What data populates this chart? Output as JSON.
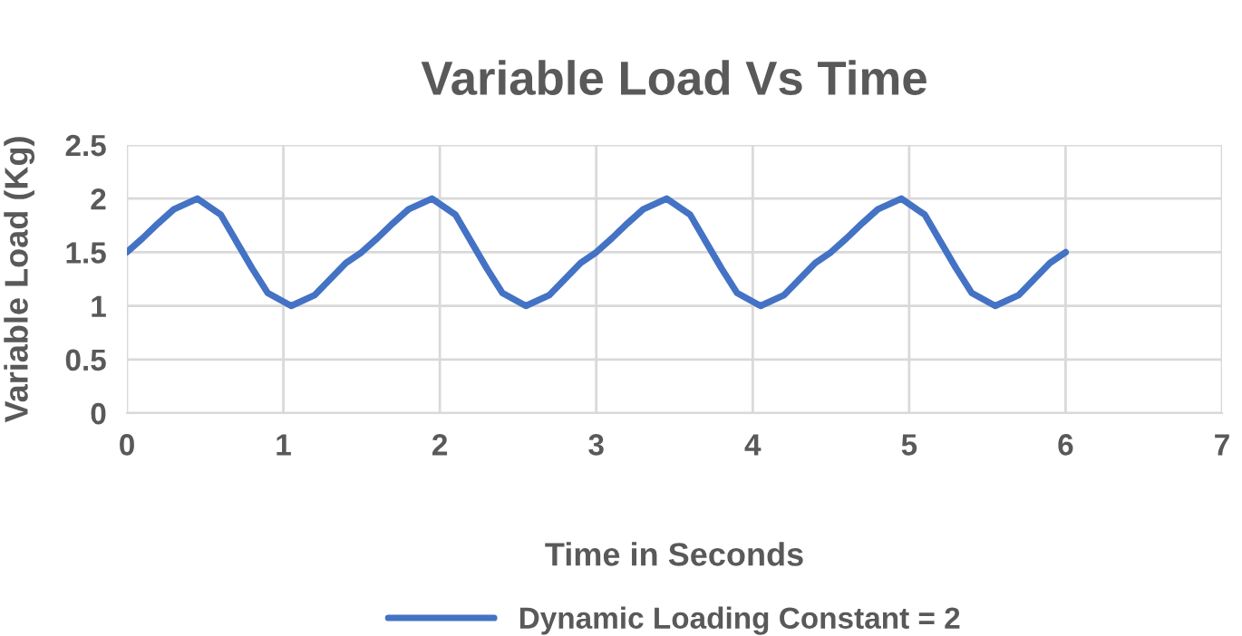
{
  "chart_data": {
    "type": "line",
    "title": "Variable Load Vs Time",
    "xlabel": "Time in Seconds",
    "ylabel": "Variable Load (Kg)",
    "series": [
      {
        "name": "Dynamic Loading Constant = 2",
        "color": "#4472c4",
        "x": [
          0,
          0.1,
          0.2,
          0.3,
          0.45,
          0.6,
          0.7,
          0.8,
          0.9,
          1.05,
          1.2,
          1.3,
          1.4,
          1.5,
          1.6,
          1.7,
          1.8,
          1.95,
          2.1,
          2.2,
          2.3,
          2.4,
          2.55,
          2.7,
          2.8,
          2.9,
          3,
          3.1,
          3.2,
          3.3,
          3.45,
          3.6,
          3.7,
          3.8,
          3.9,
          4.05,
          4.2,
          4.3,
          4.4,
          4.5,
          4.6,
          4.7,
          4.8,
          4.95,
          5.1,
          5.2,
          5.3,
          5.4,
          5.55,
          5.7,
          5.8,
          5.9,
          6
        ],
        "values": [
          1.5,
          1.63,
          1.77,
          1.9,
          2,
          1.85,
          1.6,
          1.35,
          1.12,
          1,
          1.1,
          1.25,
          1.4,
          1.5,
          1.63,
          1.77,
          1.9,
          2,
          1.85,
          1.6,
          1.35,
          1.12,
          1,
          1.1,
          1.25,
          1.4,
          1.5,
          1.63,
          1.77,
          1.9,
          2,
          1.85,
          1.6,
          1.35,
          1.12,
          1,
          1.1,
          1.25,
          1.4,
          1.5,
          1.63,
          1.77,
          1.9,
          2,
          1.85,
          1.6,
          1.35,
          1.12,
          1,
          1.1,
          1.25,
          1.4,
          1.5
        ]
      }
    ],
    "xlim": [
      0,
      7
    ],
    "xticks": [
      0,
      1,
      2,
      3,
      4,
      5,
      6,
      7
    ],
    "ylim": [
      0,
      2.5
    ],
    "yticks": [
      0,
      0.5,
      1,
      1.5,
      2,
      2.5
    ],
    "grid": true,
    "legend": "bottom",
    "marker": "none",
    "line_style": "solid"
  }
}
